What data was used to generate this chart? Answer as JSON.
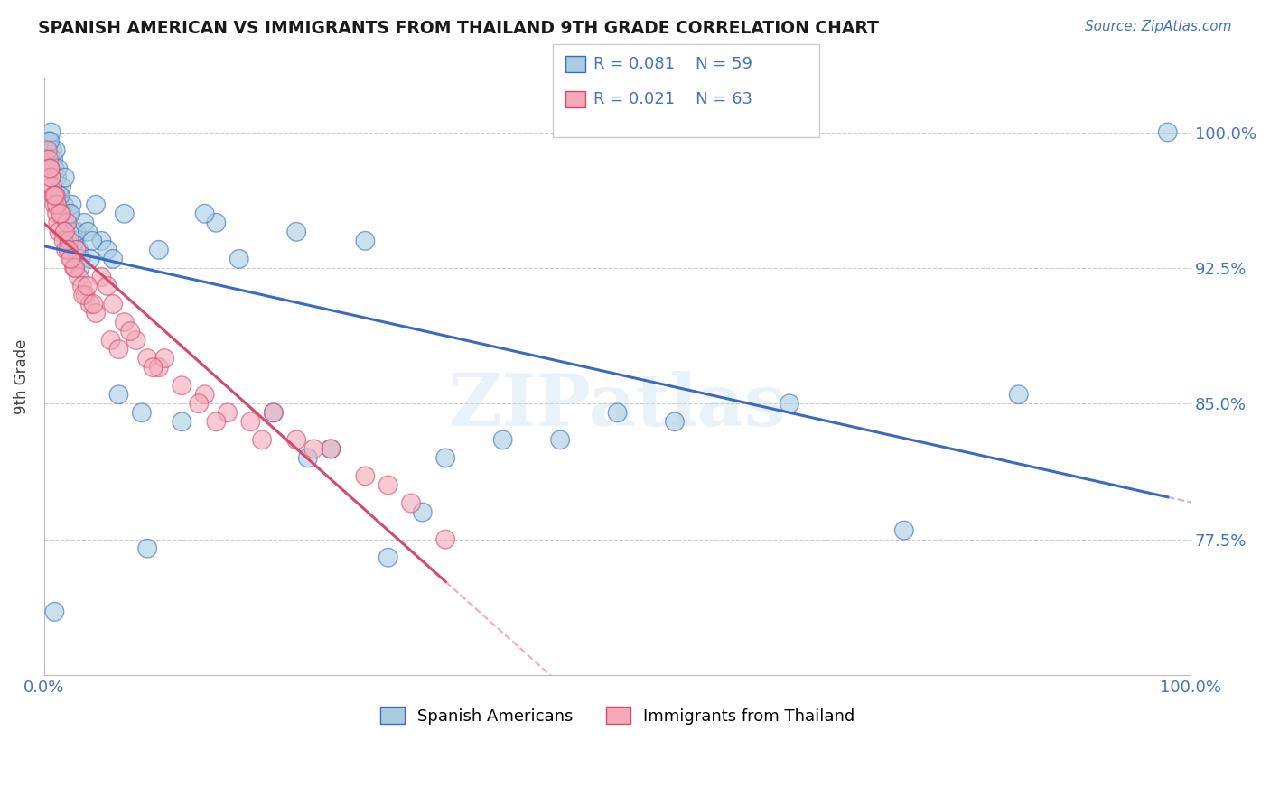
{
  "title": "SPANISH AMERICAN VS IMMIGRANTS FROM THAILAND 9TH GRADE CORRELATION CHART",
  "source": "Source: ZipAtlas.com",
  "ylabel": "9th Grade",
  "xlim": [
    0.0,
    100.0
  ],
  "ylim": [
    70.0,
    103.0
  ],
  "yticks": [
    77.5,
    85.0,
    92.5,
    100.0
  ],
  "ytick_labels": [
    "77.5%",
    "85.0%",
    "92.5%",
    "100.0%"
  ],
  "xticks": [
    0.0,
    100.0
  ],
  "xtick_labels": [
    "0.0%",
    "100.0%"
  ],
  "legend_r1": "R = 0.081",
  "legend_n1": "N = 59",
  "legend_r2": "R = 0.021",
  "legend_n2": "N = 63",
  "legend_label1": "Spanish Americans",
  "legend_label2": "Immigrants from Thailand",
  "blue_face": "#a8cce0",
  "pink_face": "#f4a8b8",
  "trend_blue": "#3a6bbf",
  "trend_pink": "#d44a6b",
  "dash_blue": "#c0b8d8",
  "dash_pink": "#f4a8b8",
  "background_color": "#ffffff",
  "grid_color": "#cccccc",
  "tick_color": "#4472c4",
  "title_color": "#1a1a1a",
  "watermark": "ZIPatlas",
  "blue_x": [
    0.4,
    0.6,
    0.7,
    0.8,
    0.9,
    1.0,
    1.1,
    1.2,
    1.3,
    1.5,
    1.6,
    1.7,
    1.8,
    2.0,
    2.2,
    2.4,
    2.5,
    2.7,
    2.8,
    3.0,
    3.2,
    3.5,
    3.8,
    4.0,
    4.5,
    5.0,
    5.5,
    6.0,
    7.0,
    8.5,
    10.0,
    12.0,
    15.0,
    17.0,
    20.0,
    22.0,
    25.0,
    28.0,
    30.0,
    35.0,
    40.0,
    50.0,
    55.0,
    65.0,
    75.0,
    85.0,
    98.0,
    0.5,
    1.4,
    2.3,
    3.1,
    4.2,
    6.5,
    9.0,
    14.0,
    23.0,
    33.0,
    45.0,
    0.9
  ],
  "blue_y": [
    99.5,
    100.0,
    99.0,
    98.5,
    98.0,
    99.0,
    97.5,
    98.0,
    96.5,
    97.0,
    95.5,
    96.0,
    97.5,
    95.0,
    95.5,
    96.0,
    94.5,
    94.0,
    94.5,
    93.5,
    93.0,
    95.0,
    94.5,
    93.0,
    96.0,
    94.0,
    93.5,
    93.0,
    95.5,
    84.5,
    93.5,
    84.0,
    95.0,
    93.0,
    84.5,
    94.5,
    82.5,
    94.0,
    76.5,
    82.0,
    83.0,
    84.5,
    84.0,
    85.0,
    78.0,
    85.5,
    100.0,
    99.5,
    96.5,
    95.5,
    92.5,
    94.0,
    85.5,
    77.0,
    95.5,
    82.0,
    79.0,
    83.0,
    73.5
  ],
  "pink_x": [
    0.3,
    0.4,
    0.5,
    0.6,
    0.7,
    0.8,
    0.9,
    1.0,
    1.1,
    1.2,
    1.3,
    1.5,
    1.7,
    1.9,
    2.0,
    2.2,
    2.4,
    2.6,
    2.8,
    3.0,
    3.3,
    3.6,
    4.0,
    4.5,
    5.0,
    5.5,
    6.0,
    7.0,
    8.0,
    9.0,
    10.0,
    12.0,
    14.0,
    16.0,
    18.0,
    20.0,
    22.0,
    25.0,
    28.0,
    30.0,
    0.6,
    1.1,
    1.4,
    2.1,
    2.7,
    3.4,
    4.3,
    5.8,
    7.5,
    10.5,
    13.5,
    19.0,
    23.5,
    32.0,
    0.9,
    2.3,
    3.8,
    6.5,
    9.5,
    15.0,
    35.0,
    0.5,
    1.8
  ],
  "pink_y": [
    99.0,
    98.5,
    98.0,
    97.5,
    97.0,
    96.5,
    96.0,
    96.5,
    95.5,
    95.0,
    94.5,
    95.5,
    94.0,
    93.5,
    95.0,
    94.0,
    93.0,
    92.5,
    93.5,
    92.0,
    91.5,
    91.0,
    90.5,
    90.0,
    92.0,
    91.5,
    90.5,
    89.5,
    88.5,
    87.5,
    87.0,
    86.0,
    85.5,
    84.5,
    84.0,
    84.5,
    83.0,
    82.5,
    81.0,
    80.5,
    97.5,
    96.0,
    95.5,
    93.5,
    92.5,
    91.0,
    90.5,
    88.5,
    89.0,
    87.5,
    85.0,
    83.0,
    82.5,
    79.5,
    96.5,
    93.0,
    91.5,
    88.0,
    87.0,
    84.0,
    77.5,
    98.0,
    94.5
  ]
}
